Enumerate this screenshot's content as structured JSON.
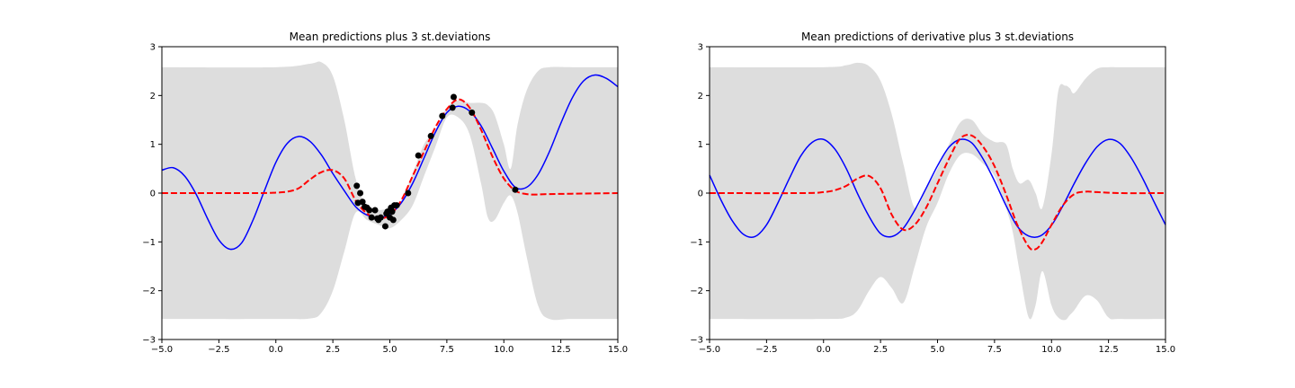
{
  "chart_data": [
    {
      "type": "line",
      "title": "Mean predictions plus 3 st.deviations",
      "xlim": [
        -5,
        15
      ],
      "ylim": [
        -3,
        3
      ],
      "xticks": [
        "−5.0",
        "−2.5",
        "0.0",
        "2.5",
        "5.0",
        "7.5",
        "10.0",
        "12.5",
        "15.0"
      ],
      "yticks": [
        "−3",
        "−2",
        "−1",
        "0",
        "1",
        "2",
        "3"
      ],
      "grid": false,
      "colors": {
        "band": "#dddddd",
        "true_function": "#0000ff",
        "mean": "#ff0000",
        "observations": "#000000"
      },
      "band": {
        "x": [
          -5,
          0,
          1.5,
          2.0,
          2.5,
          3.0,
          3.5,
          4.0,
          4.5,
          5.0,
          5.5,
          6.0,
          6.5,
          7.0,
          7.5,
          8.0,
          8.5,
          9.0,
          9.3,
          9.6,
          10.0,
          10.3,
          10.6,
          11.0,
          11.5,
          12.0,
          13.0,
          15
        ],
        "upper": [
          2.58,
          2.58,
          2.65,
          2.68,
          2.4,
          1.5,
          0.3,
          -0.3,
          -0.35,
          -0.3,
          -0.15,
          0.4,
          1.0,
          1.3,
          1.75,
          1.9,
          1.85,
          1.85,
          1.8,
          1.6,
          1.0,
          0.5,
          1.4,
          2.1,
          2.5,
          2.58,
          2.58,
          2.58
        ],
        "lower": [
          -2.58,
          -2.58,
          -2.57,
          -2.45,
          -2.0,
          -1.2,
          -0.4,
          -0.55,
          -0.65,
          -0.72,
          -0.55,
          -0.25,
          0.35,
          0.95,
          1.55,
          1.55,
          1.2,
          0.2,
          -0.5,
          -0.55,
          -0.2,
          -0.05,
          -0.4,
          -1.3,
          -2.3,
          -2.58,
          -2.58,
          -2.58
        ]
      },
      "series": [
        {
          "style": "solid",
          "x": [
            -5,
            -4.5,
            -4,
            -3.5,
            -3,
            -2.5,
            -2,
            -1.5,
            -1,
            -0.5,
            0,
            0.5,
            1,
            1.5,
            2,
            2.5,
            3,
            3.5,
            4,
            4.5,
            5,
            5.5,
            6,
            6.5,
            7,
            7.5,
            8,
            8.5,
            9,
            9.5,
            10,
            10.5,
            11,
            11.5,
            12,
            12.5,
            13,
            13.5,
            14,
            14.5,
            15
          ],
          "values": [
            0.47,
            0.52,
            0.35,
            -0.02,
            -0.52,
            -0.96,
            -1.15,
            -1.02,
            -0.55,
            0.05,
            0.63,
            1.02,
            1.16,
            1.06,
            0.78,
            0.4,
            0.05,
            -0.28,
            -0.45,
            -0.5,
            -0.43,
            -0.2,
            0.2,
            0.72,
            1.25,
            1.65,
            1.78,
            1.68,
            1.38,
            0.92,
            0.45,
            0.12,
            0.12,
            0.38,
            0.85,
            1.43,
            1.95,
            2.3,
            2.42,
            2.35,
            2.18
          ]
        },
        {
          "style": "dashed",
          "x": [
            -5,
            -1,
            0,
            0.5,
            1.0,
            1.5,
            2.0,
            2.5,
            3.0,
            3.5,
            4.0,
            4.5,
            5.0,
            5.5,
            6.0,
            6.5,
            7.0,
            7.5,
            8.0,
            8.5,
            9.0,
            9.5,
            10.0,
            10.5,
            11.0,
            11.5,
            12.0,
            15
          ],
          "values": [
            0.0,
            0.0,
            0.01,
            0.03,
            0.1,
            0.28,
            0.43,
            0.47,
            0.3,
            -0.15,
            -0.42,
            -0.52,
            -0.45,
            -0.15,
            0.35,
            0.85,
            1.35,
            1.72,
            1.92,
            1.75,
            1.3,
            0.75,
            0.3,
            0.05,
            -0.02,
            -0.03,
            -0.02,
            0.0
          ]
        }
      ],
      "points": {
        "x": [
          3.55,
          3.6,
          3.7,
          3.8,
          3.9,
          4.0,
          4.1,
          4.2,
          4.35,
          4.45,
          4.5,
          4.6,
          4.8,
          4.85,
          4.9,
          5.0,
          5.05,
          5.1,
          5.15,
          5.2,
          5.3,
          5.8,
          6.25,
          6.8,
          7.3,
          7.75,
          7.8,
          8.6,
          10.5
        ],
        "y": [
          0.15,
          -0.2,
          0.0,
          -0.18,
          -0.28,
          -0.3,
          -0.35,
          -0.5,
          -0.35,
          -0.52,
          -0.55,
          -0.5,
          -0.68,
          -0.42,
          -0.38,
          -0.5,
          -0.3,
          -0.38,
          -0.55,
          -0.25,
          -0.25,
          0.0,
          0.77,
          1.17,
          1.58,
          1.75,
          1.97,
          1.65,
          0.07
        ]
      }
    },
    {
      "type": "line",
      "title": "Mean predictions of derivative plus 3 st.deviations",
      "xlim": [
        -5,
        15
      ],
      "ylim": [
        -3,
        3
      ],
      "xticks": [
        "−5.0",
        "−2.5",
        "0.0",
        "2.5",
        "5.0",
        "7.5",
        "10.0",
        "12.5",
        "15.0"
      ],
      "yticks": [
        "−3",
        "−2",
        "−1",
        "0",
        "1",
        "2",
        "3"
      ],
      "grid": false,
      "colors": {
        "band": "#dddddd",
        "true_function": "#0000ff",
        "mean": "#ff0000"
      },
      "band": {
        "x": [
          -5,
          0,
          1.0,
          1.5,
          2.0,
          2.5,
          3.0,
          3.5,
          4.0,
          4.5,
          5.0,
          5.5,
          6.0,
          6.5,
          7.0,
          7.5,
          8.0,
          8.3,
          8.6,
          9.0,
          9.3,
          9.6,
          10.0,
          10.3,
          10.6,
          10.8,
          11.0,
          11.5,
          12.0,
          12.5,
          13.0,
          15
        ],
        "upper": [
          2.58,
          2.58,
          2.62,
          2.67,
          2.6,
          2.3,
          1.6,
          0.6,
          -0.3,
          0.1,
          0.5,
          1.0,
          1.45,
          1.5,
          1.2,
          1.05,
          1.0,
          0.5,
          0.2,
          0.27,
          0.0,
          -0.3,
          0.8,
          2.1,
          2.2,
          2.15,
          2.05,
          2.35,
          2.55,
          2.58,
          2.58,
          2.58
        ],
        "lower": [
          -2.58,
          -2.58,
          -2.55,
          -2.4,
          -2.0,
          -1.72,
          -1.95,
          -2.25,
          -1.5,
          -0.7,
          -0.2,
          0.4,
          0.78,
          0.8,
          0.6,
          0.35,
          -0.3,
          -0.8,
          -1.6,
          -2.55,
          -2.3,
          -1.6,
          -2.3,
          -2.55,
          -2.6,
          -2.5,
          -2.4,
          -2.1,
          -2.2,
          -2.55,
          -2.58,
          -2.58
        ]
      },
      "series": [
        {
          "style": "solid",
          "x": [
            -5,
            -4.5,
            -4,
            -3.5,
            -3,
            -2.5,
            -2,
            -1.5,
            -1,
            -0.5,
            0,
            0.5,
            1,
            1.5,
            2,
            2.5,
            3,
            3.5,
            4,
            4.5,
            5,
            5.5,
            6,
            6.5,
            7,
            7.5,
            8,
            8.5,
            9,
            9.5,
            10,
            10.5,
            11,
            11.5,
            12,
            12.5,
            13,
            13.5,
            14,
            14.5,
            15
          ],
          "values": [
            0.37,
            -0.14,
            -0.57,
            -0.85,
            -0.89,
            -0.65,
            -0.2,
            0.3,
            0.76,
            1.04,
            1.1,
            0.9,
            0.5,
            -0.02,
            -0.48,
            -0.83,
            -0.89,
            -0.72,
            -0.35,
            0.1,
            0.56,
            0.94,
            1.1,
            1.03,
            0.7,
            0.25,
            -0.25,
            -0.68,
            -0.88,
            -0.88,
            -0.66,
            -0.26,
            0.2,
            0.62,
            0.95,
            1.1,
            1.02,
            0.72,
            0.3,
            -0.18,
            -0.65
          ]
        },
        {
          "style": "dashed",
          "x": [
            -5,
            -1,
            0,
            0.5,
            1.0,
            1.5,
            2.0,
            2.5,
            3.0,
            3.5,
            4.0,
            4.5,
            5.0,
            5.5,
            6.0,
            6.5,
            7.0,
            7.5,
            8.0,
            8.5,
            9.0,
            9.3,
            9.6,
            10.0,
            10.5,
            11.0,
            11.5,
            12.0,
            13.0,
            15
          ],
          "values": [
            0.0,
            0.0,
            0.02,
            0.06,
            0.15,
            0.3,
            0.35,
            0.1,
            -0.45,
            -0.75,
            -0.65,
            -0.3,
            0.2,
            0.7,
            1.12,
            1.18,
            0.95,
            0.55,
            -0.02,
            -0.65,
            -1.1,
            -1.15,
            -1.0,
            -0.65,
            -0.25,
            -0.02,
            0.03,
            0.02,
            0.0,
            0.0
          ]
        }
      ]
    }
  ]
}
